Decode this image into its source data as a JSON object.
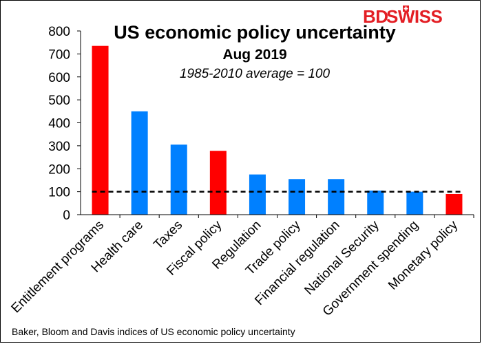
{
  "logo": {
    "text_bd": "BD",
    "text_swiss": "SWISS",
    "accent": "#e31e24"
  },
  "chart_data": {
    "type": "bar",
    "title": "US economic policy uncertainty",
    "subtitle": "Aug 2019",
    "note": "1985-2010 average = 100",
    "categories": [
      "Entitlement programs",
      "Health care",
      "Taxes",
      "Fiscal policy",
      "Regulation",
      "Trade policy",
      "Financial regulation",
      "National Security",
      "Government spending",
      "Monetary policy"
    ],
    "values": [
      735,
      450,
      305,
      278,
      175,
      155,
      155,
      105,
      100,
      90
    ],
    "colors": [
      "#ff0000",
      "#0080ff",
      "#0080ff",
      "#ff0000",
      "#0080ff",
      "#0080ff",
      "#0080ff",
      "#0080ff",
      "#0080ff",
      "#ff0000"
    ],
    "ylim": [
      0,
      800
    ],
    "yticks": [
      0,
      100,
      200,
      300,
      400,
      500,
      600,
      700,
      800
    ],
    "reference_line": {
      "value": 100,
      "style": "dashed",
      "color": "#000000"
    },
    "grid": false,
    "xlabel": "",
    "ylabel": ""
  },
  "source": "Baker, Bloom and Davis indices of US economic policy uncertainty"
}
